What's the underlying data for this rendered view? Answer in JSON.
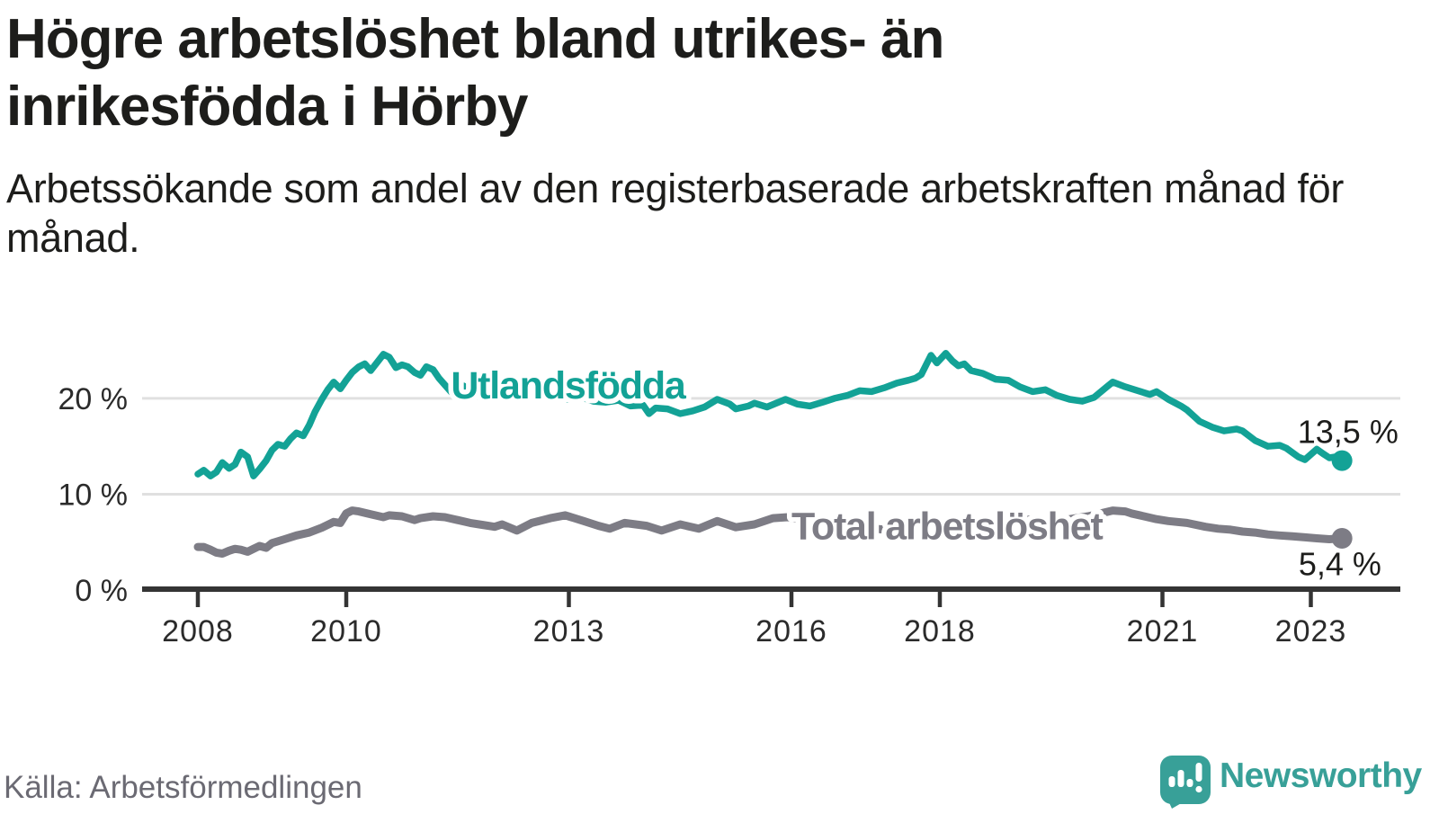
{
  "header": {
    "title": "Högre arbetslöshet bland utrikes- än inrikesfödda i Hörby",
    "subtitle": "Arbetssökande som andel av den registerbaserade arbetskraften månad för månad."
  },
  "footer": {
    "source": "Källa: Arbetsförmedlingen",
    "brand": "Newsworthy"
  },
  "colors": {
    "foreign_born": "#13a296",
    "total": "#7d7c85",
    "axis": "#343434",
    "grid": "#e0e0e0",
    "tick_text": "#2b2b2b",
    "value_text": "#1d1d1b",
    "source_text": "#6b6a73",
    "logo": "#38a098",
    "background": "#ffffff"
  },
  "chart_data": {
    "type": "line",
    "title": "Högre arbetslöshet bland utrikes- än inrikesfödda i Hörby",
    "subtitle": "Arbetssökande som andel av den registerbaserade arbetskraften månad för månad.",
    "unit": "%",
    "x_axis": {
      "ticks": [
        2008,
        2010,
        2013,
        2016,
        2018,
        2021,
        2023
      ],
      "tick_labels": [
        "2008",
        "2010",
        "2013",
        "2016",
        "2018",
        "2021",
        "2023"
      ],
      "range": [
        2007.25,
        2024.2
      ]
    },
    "y_axis": {
      "ticks": [
        0,
        10,
        20
      ],
      "tick_labels": [
        "0 %",
        "10 %",
        "20 %"
      ],
      "range": [
        0,
        26
      ],
      "grid": true
    },
    "legend_position": "inline-labels",
    "series": [
      {
        "name": "Utlandsfödda",
        "color": "#13a296",
        "line_width": 7.5,
        "end_value": 13.5,
        "end_label": "13,5 %",
        "points": [
          [
            2008.0,
            12.1
          ],
          [
            2008.08,
            12.5
          ],
          [
            2008.17,
            11.9
          ],
          [
            2008.25,
            12.3
          ],
          [
            2008.33,
            13.3
          ],
          [
            2008.42,
            12.7
          ],
          [
            2008.5,
            13.1
          ],
          [
            2008.58,
            14.4
          ],
          [
            2008.67,
            13.9
          ],
          [
            2008.75,
            11.9
          ],
          [
            2008.83,
            12.6
          ],
          [
            2008.92,
            13.5
          ],
          [
            2009.0,
            14.6
          ],
          [
            2009.08,
            15.2
          ],
          [
            2009.17,
            15.0
          ],
          [
            2009.25,
            15.8
          ],
          [
            2009.33,
            16.4
          ],
          [
            2009.42,
            16.1
          ],
          [
            2009.5,
            17.2
          ],
          [
            2009.58,
            18.6
          ],
          [
            2009.67,
            19.9
          ],
          [
            2009.75,
            20.9
          ],
          [
            2009.83,
            21.7
          ],
          [
            2009.92,
            21.0
          ],
          [
            2010.0,
            21.9
          ],
          [
            2010.08,
            22.7
          ],
          [
            2010.17,
            23.3
          ],
          [
            2010.25,
            23.6
          ],
          [
            2010.33,
            22.9
          ],
          [
            2010.42,
            23.8
          ],
          [
            2010.5,
            24.6
          ],
          [
            2010.58,
            24.3
          ],
          [
            2010.67,
            23.2
          ],
          [
            2010.75,
            23.5
          ],
          [
            2010.83,
            23.3
          ],
          [
            2010.92,
            22.7
          ],
          [
            2011.0,
            22.4
          ],
          [
            2011.08,
            23.3
          ],
          [
            2011.17,
            23.0
          ],
          [
            2011.25,
            22.1
          ],
          [
            2011.33,
            21.4
          ],
          [
            2011.42,
            20.6
          ],
          [
            2011.5,
            21.1
          ],
          [
            2011.58,
            21.3
          ],
          [
            2011.67,
            20.9
          ],
          [
            2011.75,
            20.6
          ],
          [
            2011.83,
            21.0
          ],
          [
            2011.92,
            20.8
          ],
          [
            2012.0,
            20.6
          ],
          [
            2012.17,
            20.9
          ],
          [
            2012.33,
            20.3
          ],
          [
            2012.5,
            20.2
          ],
          [
            2012.67,
            20.4
          ],
          [
            2012.83,
            20.1
          ],
          [
            2013.0,
            19.9
          ],
          [
            2013.17,
            20.1
          ],
          [
            2013.33,
            19.7
          ],
          [
            2013.5,
            19.6
          ],
          [
            2013.67,
            19.8
          ],
          [
            2013.83,
            19.2
          ],
          [
            2014.0,
            19.3
          ],
          [
            2014.08,
            18.4
          ],
          [
            2014.17,
            19.0
          ],
          [
            2014.33,
            18.9
          ],
          [
            2014.5,
            18.4
          ],
          [
            2014.67,
            18.7
          ],
          [
            2014.83,
            19.1
          ],
          [
            2015.0,
            19.9
          ],
          [
            2015.17,
            19.4
          ],
          [
            2015.25,
            18.9
          ],
          [
            2015.42,
            19.2
          ],
          [
            2015.5,
            19.5
          ],
          [
            2015.67,
            19.1
          ],
          [
            2015.92,
            19.9
          ],
          [
            2016.08,
            19.4
          ],
          [
            2016.25,
            19.2
          ],
          [
            2016.42,
            19.6
          ],
          [
            2016.58,
            20.0
          ],
          [
            2016.75,
            20.3
          ],
          [
            2016.92,
            20.8
          ],
          [
            2017.08,
            20.7
          ],
          [
            2017.25,
            21.1
          ],
          [
            2017.42,
            21.6
          ],
          [
            2017.58,
            21.9
          ],
          [
            2017.67,
            22.1
          ],
          [
            2017.75,
            22.5
          ],
          [
            2017.88,
            24.5
          ],
          [
            2017.96,
            23.7
          ],
          [
            2018.08,
            24.7
          ],
          [
            2018.17,
            23.9
          ],
          [
            2018.25,
            23.4
          ],
          [
            2018.33,
            23.6
          ],
          [
            2018.42,
            22.9
          ],
          [
            2018.58,
            22.6
          ],
          [
            2018.75,
            22.0
          ],
          [
            2018.92,
            21.9
          ],
          [
            2019.08,
            21.2
          ],
          [
            2019.25,
            20.7
          ],
          [
            2019.42,
            20.9
          ],
          [
            2019.58,
            20.3
          ],
          [
            2019.75,
            19.9
          ],
          [
            2019.92,
            19.7
          ],
          [
            2020.08,
            20.1
          ],
          [
            2020.25,
            21.2
          ],
          [
            2020.33,
            21.7
          ],
          [
            2020.5,
            21.2
          ],
          [
            2020.67,
            20.8
          ],
          [
            2020.83,
            20.4
          ],
          [
            2020.92,
            20.7
          ],
          [
            2021.08,
            19.9
          ],
          [
            2021.25,
            19.2
          ],
          [
            2021.33,
            18.8
          ],
          [
            2021.5,
            17.6
          ],
          [
            2021.67,
            17.0
          ],
          [
            2021.83,
            16.6
          ],
          [
            2022.0,
            16.8
          ],
          [
            2022.08,
            16.6
          ],
          [
            2022.25,
            15.6
          ],
          [
            2022.42,
            15.0
          ],
          [
            2022.58,
            15.1
          ],
          [
            2022.67,
            14.8
          ],
          [
            2022.83,
            13.9
          ],
          [
            2022.92,
            13.6
          ],
          [
            2023.08,
            14.7
          ],
          [
            2023.17,
            14.2
          ],
          [
            2023.25,
            13.8
          ],
          [
            2023.33,
            13.9
          ],
          [
            2023.42,
            13.5
          ]
        ]
      },
      {
        "name": "Total arbetslöshet",
        "color": "#7d7c85",
        "line_width": 9,
        "end_value": 5.4,
        "end_label": "5,4 %",
        "points": [
          [
            2008.0,
            4.5
          ],
          [
            2008.08,
            4.5
          ],
          [
            2008.17,
            4.2
          ],
          [
            2008.25,
            3.9
          ],
          [
            2008.33,
            3.8
          ],
          [
            2008.42,
            4.1
          ],
          [
            2008.5,
            4.3
          ],
          [
            2008.58,
            4.2
          ],
          [
            2008.67,
            4.0
          ],
          [
            2008.75,
            4.3
          ],
          [
            2008.83,
            4.6
          ],
          [
            2008.92,
            4.4
          ],
          [
            2009.0,
            4.9
          ],
          [
            2009.17,
            5.3
          ],
          [
            2009.33,
            5.7
          ],
          [
            2009.5,
            6.0
          ],
          [
            2009.67,
            6.5
          ],
          [
            2009.83,
            7.1
          ],
          [
            2009.92,
            7.0
          ],
          [
            2010.0,
            8.0
          ],
          [
            2010.08,
            8.3
          ],
          [
            2010.17,
            8.2
          ],
          [
            2010.33,
            7.9
          ],
          [
            2010.5,
            7.6
          ],
          [
            2010.58,
            7.8
          ],
          [
            2010.75,
            7.7
          ],
          [
            2010.92,
            7.3
          ],
          [
            2011.0,
            7.5
          ],
          [
            2011.17,
            7.7
          ],
          [
            2011.33,
            7.6
          ],
          [
            2011.5,
            7.3
          ],
          [
            2011.67,
            7.0
          ],
          [
            2011.83,
            6.8
          ],
          [
            2012.0,
            6.6
          ],
          [
            2012.1,
            6.85
          ],
          [
            2012.3,
            6.2
          ],
          [
            2012.5,
            7.0
          ],
          [
            2012.75,
            7.5
          ],
          [
            2012.95,
            7.8
          ],
          [
            2013.2,
            7.2
          ],
          [
            2013.4,
            6.7
          ],
          [
            2013.55,
            6.4
          ],
          [
            2013.75,
            7.0
          ],
          [
            2014.05,
            6.7
          ],
          [
            2014.25,
            6.2
          ],
          [
            2014.5,
            6.85
          ],
          [
            2014.75,
            6.4
          ],
          [
            2015.0,
            7.2
          ],
          [
            2015.25,
            6.55
          ],
          [
            2015.5,
            6.85
          ],
          [
            2015.75,
            7.5
          ],
          [
            2015.95,
            7.6
          ],
          [
            2016.17,
            7.3
          ],
          [
            2016.33,
            7.0
          ],
          [
            2016.5,
            6.8
          ],
          [
            2016.67,
            6.9
          ],
          [
            2016.83,
            6.7
          ],
          [
            2017.0,
            6.5
          ],
          [
            2017.25,
            6.3
          ],
          [
            2017.5,
            6.1
          ],
          [
            2017.75,
            6.3
          ],
          [
            2018.0,
            6.6
          ],
          [
            2018.25,
            6.8
          ],
          [
            2018.5,
            7.0
          ],
          [
            2018.75,
            7.1
          ],
          [
            2019.0,
            7.2
          ],
          [
            2019.25,
            7.4
          ],
          [
            2019.5,
            7.3
          ],
          [
            2019.75,
            7.4
          ],
          [
            2020.0,
            7.7
          ],
          [
            2020.17,
            8.0
          ],
          [
            2020.33,
            8.3
          ],
          [
            2020.5,
            8.2
          ],
          [
            2020.58,
            8.0
          ],
          [
            2020.75,
            7.7
          ],
          [
            2020.92,
            7.4
          ],
          [
            2021.08,
            7.2
          ],
          [
            2021.33,
            7.0
          ],
          [
            2021.58,
            6.6
          ],
          [
            2021.75,
            6.4
          ],
          [
            2021.92,
            6.3
          ],
          [
            2022.08,
            6.1
          ],
          [
            2022.25,
            6.0
          ],
          [
            2022.42,
            5.8
          ],
          [
            2022.58,
            5.7
          ],
          [
            2022.75,
            5.6
          ],
          [
            2022.92,
            5.5
          ],
          [
            2023.08,
            5.4
          ],
          [
            2023.25,
            5.3
          ],
          [
            2023.42,
            5.4
          ]
        ]
      }
    ],
    "annotations": {
      "series_labels": [
        {
          "text": "Utlandsfödda",
          "year": 2011.41,
          "value": 20.0,
          "color": "#13a296",
          "anchor": "start"
        },
        {
          "text": "Total arbetslöshet",
          "year": 2016.0,
          "value": 5.3,
          "color": "#7d7c85",
          "anchor": "start"
        }
      ],
      "end_labels": [
        {
          "text": "13,5 %",
          "year": 2024.18,
          "value": 15.35,
          "color": "#1d1d1b",
          "anchor": "end"
        },
        {
          "text": "5,4 %",
          "year": 2023.95,
          "value": 1.55,
          "color": "#1d1d1b",
          "anchor": "end"
        }
      ]
    }
  }
}
